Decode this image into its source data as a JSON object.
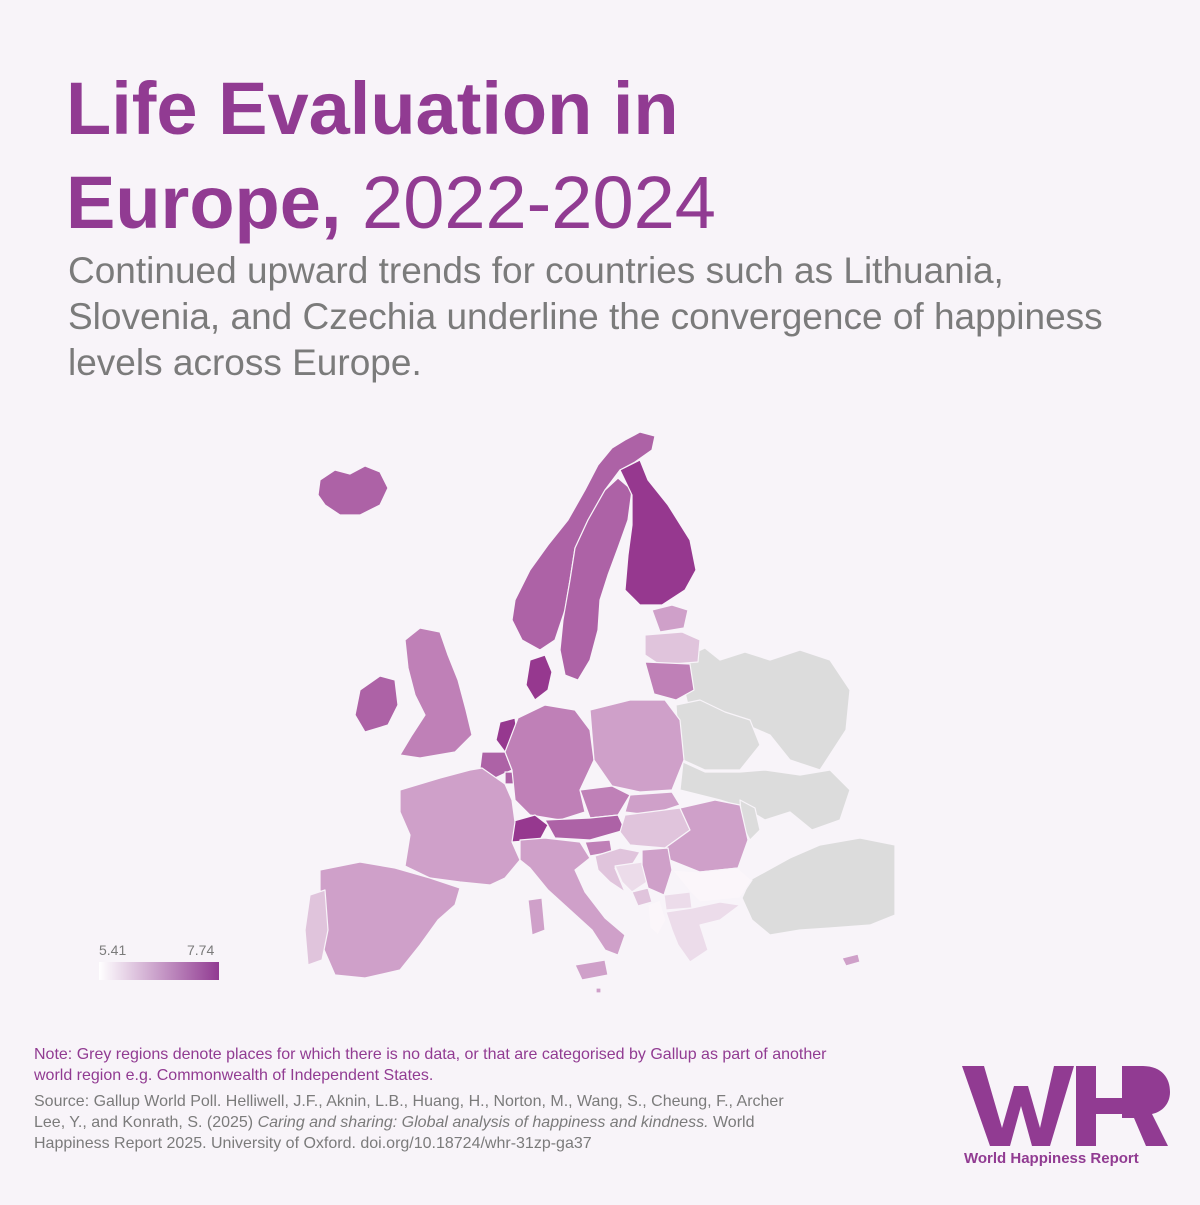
{
  "title": {
    "line1": "Life Evaluation in",
    "line2_bold": "Europe,",
    "line2_years": "2022-2024"
  },
  "subtitle": "Continued upward trends for countries such as Lithuania, Slovenia, and Czechia underline the convergence of happiness levels across Europe.",
  "legend": {
    "min": "5.41",
    "max": "7.74",
    "min_color": "#ffffff",
    "max_color": "#913b92"
  },
  "note": "Note: Grey regions denote places for which there is no data, or that are categorised by Gallup as part of another world region e.g. Commonwealth of Independent States.",
  "source": {
    "before_italic": "Source: Gallup World Poll. Helliwell, J.F., Aknin, L.B., Huang, H., Norton, M., Wang, S., Cheung, F., Archer Lee, Y., and Konrath, S. (2025) ",
    "italic": "Caring and sharing: Global analysis of happiness and kindness.",
    "after_italic": " World Happiness Report 2025. University of Oxford. doi.org/10.18724/whr-31zp-ga37"
  },
  "logo_text": "World Happiness Report",
  "colors": {
    "accent": "#913b92",
    "no_data": "#dcdcdc",
    "background": "#f8f4f9",
    "text_grey": "#7b7b7b"
  },
  "map": {
    "countries": [
      {
        "name": "Iceland",
        "level": "high"
      },
      {
        "name": "Norway",
        "level": "high"
      },
      {
        "name": "Sweden",
        "level": "high"
      },
      {
        "name": "Finland",
        "level": "highest"
      },
      {
        "name": "Denmark",
        "level": "highest"
      },
      {
        "name": "Netherlands",
        "level": "highest"
      },
      {
        "name": "Ireland",
        "level": "high"
      },
      {
        "name": "United Kingdom",
        "level": "mid-high"
      },
      {
        "name": "Estonia",
        "level": "mid"
      },
      {
        "name": "Latvia",
        "level": "low"
      },
      {
        "name": "Lithuania",
        "level": "mid-high"
      },
      {
        "name": "Belgium",
        "level": "high"
      },
      {
        "name": "Luxembourg",
        "level": "high"
      },
      {
        "name": "Germany",
        "level": "mid-high"
      },
      {
        "name": "Poland",
        "level": "mid"
      },
      {
        "name": "France",
        "level": "mid"
      },
      {
        "name": "Switzerland",
        "level": "highest"
      },
      {
        "name": "Austria",
        "level": "high"
      },
      {
        "name": "Czechia",
        "level": "mid-high"
      },
      {
        "name": "Slovakia",
        "level": "mid"
      },
      {
        "name": "Hungary",
        "level": "low"
      },
      {
        "name": "Slovenia",
        "level": "mid-high"
      },
      {
        "name": "Croatia",
        "level": "low"
      },
      {
        "name": "Bosnia and Herzegovina",
        "level": "lower"
      },
      {
        "name": "Serbia",
        "level": "mid"
      },
      {
        "name": "Montenegro",
        "level": "low"
      },
      {
        "name": "Albania",
        "level": "lowest"
      },
      {
        "name": "North Macedonia",
        "level": "lower"
      },
      {
        "name": "Romania",
        "level": "mid"
      },
      {
        "name": "Bulgaria",
        "level": "lowest"
      },
      {
        "name": "Greece",
        "level": "lower"
      },
      {
        "name": "Italy",
        "level": "mid"
      },
      {
        "name": "Spain",
        "level": "mid"
      },
      {
        "name": "Portugal",
        "level": "low"
      },
      {
        "name": "Cyprus",
        "level": "mid"
      },
      {
        "name": "Malta",
        "level": "mid"
      }
    ],
    "no_data_regions": [
      "Russia",
      "Belarus",
      "Ukraine",
      "Moldova",
      "Turkey"
    ],
    "level_colors": {
      "highest": "#96388f",
      "high": "#ad62a6",
      "mid-high": "#bf80b7",
      "mid": "#cfa0c9",
      "low": "#e0c4dc",
      "lower": "#ecdcea",
      "lowest": "#fbf6fa"
    }
  }
}
